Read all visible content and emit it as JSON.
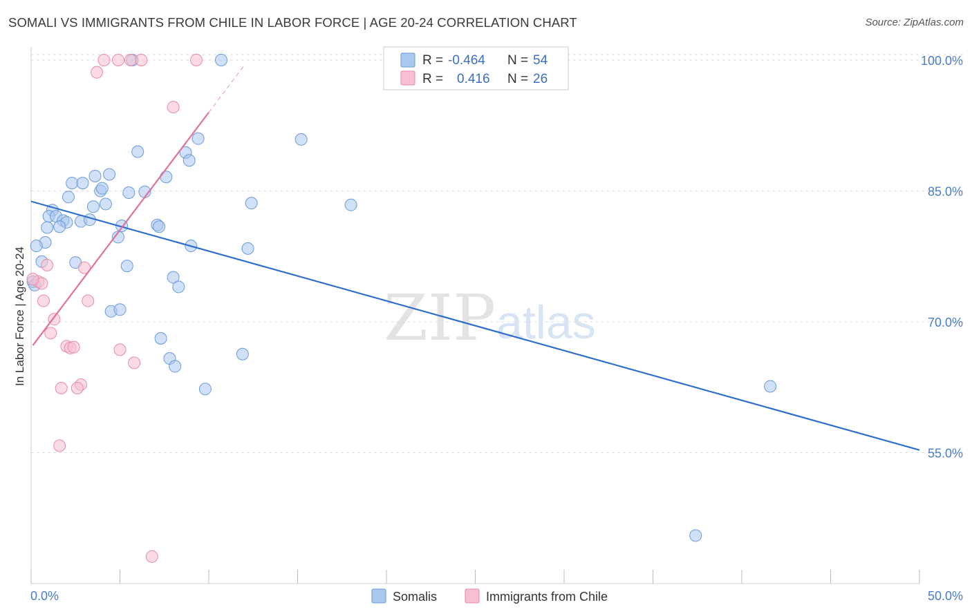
{
  "header": {
    "title": "SOMALI VS IMMIGRANTS FROM CHILE IN LABOR FORCE | AGE 20-24 CORRELATION CHART",
    "source": "Source: ZipAtlas.com"
  },
  "watermark": {
    "part1": "ZIP",
    "part2": "atlas"
  },
  "legend_box": {
    "rows": [
      {
        "r_label": "R =",
        "r_value": "-0.464",
        "n_label": "N =",
        "n_value": "54",
        "color": "#a9c8f0",
        "stroke": "#6a9ad8"
      },
      {
        "r_label": "R =",
        "r_value": "0.416",
        "n_label": "N =",
        "n_value": "26",
        "color": "#f7bfd0",
        "stroke": "#e88aa8"
      }
    ]
  },
  "bottom_legend": {
    "items": [
      {
        "label": "Somalis",
        "color": "#a9c8f0",
        "stroke": "#6a9ad8"
      },
      {
        "label": "Immigrants from Chile",
        "color": "#f7bfd0",
        "stroke": "#e88aa8"
      }
    ]
  },
  "chart_data": {
    "type": "scatter",
    "title": "SOMALI VS IMMIGRANTS FROM CHILE IN LABOR FORCE | AGE 20-24 CORRELATION CHART",
    "xlabel": "",
    "ylabel": "In Labor Force | Age 20-24",
    "xlim": [
      0,
      50
    ],
    "ylim": [
      40,
      101.5
    ],
    "x_tick_labels": [
      "0.0%",
      "50.0%"
    ],
    "y_ticks": [
      55,
      70,
      85,
      100
    ],
    "y_tick_labels": [
      "55.0%",
      "70.0%",
      "85.0%",
      "100.0%"
    ],
    "grid": true,
    "legend_position": "top-center",
    "series": [
      {
        "name": "Somalis",
        "color": "#a9c8f0",
        "stroke": "#6a9ad8",
        "line_color": "#2e6fcc",
        "trend": {
          "x": [
            0,
            50
          ],
          "y": [
            83.8,
            55.3
          ]
        },
        "points": [
          [
            10.7,
            100
          ],
          [
            5.7,
            100
          ],
          [
            15.2,
            90.9
          ],
          [
            9.4,
            91.0
          ],
          [
            6.0,
            89.5
          ],
          [
            8.7,
            89.4
          ],
          [
            8.9,
            88.5
          ],
          [
            3.6,
            86.7
          ],
          [
            4.4,
            86.9
          ],
          [
            7.6,
            86.6
          ],
          [
            2.3,
            85.9
          ],
          [
            2.9,
            85.9
          ],
          [
            3.9,
            85.0
          ],
          [
            4.0,
            85.3
          ],
          [
            5.5,
            84.8
          ],
          [
            6.4,
            84.9
          ],
          [
            2.1,
            84.3
          ],
          [
            3.5,
            83.2
          ],
          [
            4.2,
            83.5
          ],
          [
            12.4,
            83.6
          ],
          [
            18.0,
            83.4
          ],
          [
            1.2,
            82.8
          ],
          [
            1.0,
            82.1
          ],
          [
            1.4,
            82.1
          ],
          [
            1.8,
            81.6
          ],
          [
            2.0,
            81.4
          ],
          [
            2.8,
            81.5
          ],
          [
            3.3,
            81.7
          ],
          [
            0.9,
            80.8
          ],
          [
            1.6,
            80.9
          ],
          [
            5.1,
            81.0
          ],
          [
            7.1,
            81.1
          ],
          [
            7.2,
            80.9
          ],
          [
            4.9,
            79.7
          ],
          [
            0.8,
            79.1
          ],
          [
            0.3,
            78.7
          ],
          [
            9.0,
            78.7
          ],
          [
            12.2,
            78.4
          ],
          [
            0.6,
            76.9
          ],
          [
            2.5,
            76.8
          ],
          [
            5.4,
            76.4
          ],
          [
            8.0,
            75.1
          ],
          [
            8.3,
            74.0
          ],
          [
            0.1,
            74.6
          ],
          [
            0.2,
            74.2
          ],
          [
            4.5,
            71.2
          ],
          [
            5.0,
            71.4
          ],
          [
            7.3,
            68.1
          ],
          [
            11.9,
            66.3
          ],
          [
            7.8,
            65.8
          ],
          [
            8.1,
            64.9
          ],
          [
            9.8,
            62.3
          ],
          [
            41.6,
            62.6
          ],
          [
            37.4,
            45.5
          ]
        ]
      },
      {
        "name": "Immigrants from Chile",
        "color": "#f7bfd0",
        "stroke": "#e88aa8",
        "line_color": "#e07098",
        "trend": {
          "x": [
            0.1,
            10.0
          ],
          "y": [
            67.3,
            94.0
          ]
        },
        "trend_dashed": {
          "x": [
            10.0,
            12.0
          ],
          "y": [
            94.0,
            99.4
          ]
        },
        "points": [
          [
            4.1,
            100
          ],
          [
            4.9,
            100
          ],
          [
            5.6,
            100
          ],
          [
            6.2,
            100
          ],
          [
            9.3,
            100
          ],
          [
            3.7,
            98.6
          ],
          [
            8.0,
            94.6
          ],
          [
            0.9,
            76.5
          ],
          [
            3.0,
            76.2
          ],
          [
            0.4,
            74.6
          ],
          [
            0.6,
            74.4
          ],
          [
            0.7,
            72.4
          ],
          [
            3.2,
            72.4
          ],
          [
            1.3,
            70.3
          ],
          [
            1.1,
            68.7
          ],
          [
            2.0,
            67.2
          ],
          [
            2.2,
            67.0
          ],
          [
            2.4,
            67.1
          ],
          [
            5.0,
            66.8
          ],
          [
            5.8,
            65.3
          ],
          [
            2.8,
            62.8
          ],
          [
            2.6,
            62.4
          ],
          [
            1.7,
            62.4
          ],
          [
            1.6,
            55.8
          ],
          [
            6.8,
            43.1
          ],
          [
            0.1,
            74.9
          ]
        ]
      }
    ]
  }
}
